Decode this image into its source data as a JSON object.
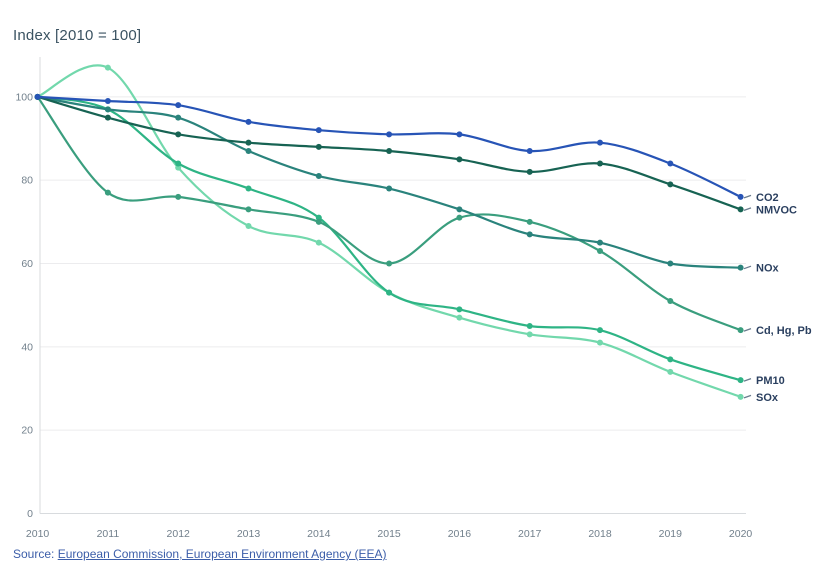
{
  "title": "Index [2010 = 100]",
  "source": {
    "prefix": "Source: ",
    "link_text": "European Commission, European Environment Agency (EEA)",
    "link_color": "#3c5ea9"
  },
  "axis": {
    "tick_color": "#72808c",
    "grid_color": "#ececee",
    "axis_line_color": "#d8dbde",
    "label_color": "#2a3f5f"
  },
  "chart_data": {
    "type": "line",
    "title": "Index [2010 = 100]",
    "x": [
      2010,
      2011,
      2012,
      2013,
      2014,
      2015,
      2016,
      2017,
      2018,
      2019,
      2020
    ],
    "yticks": [
      0,
      20,
      40,
      60,
      80,
      100
    ],
    "ylim": [
      0,
      110
    ],
    "grid": true,
    "legend_position": "right-end-labels",
    "marker": "dot",
    "smooth": true,
    "series": [
      {
        "id": "co2",
        "name": "CO2",
        "color": "#2754b6",
        "values": [
          100,
          99,
          98,
          94,
          92,
          91,
          91,
          87,
          89,
          84,
          76
        ]
      },
      {
        "id": "nmvoc",
        "name": "NMVOC",
        "color": "#176353",
        "values": [
          100,
          95,
          91,
          89,
          88,
          87,
          85,
          82,
          84,
          79,
          73
        ]
      },
      {
        "id": "nox",
        "name": "NOx",
        "color": "#2a837c",
        "values": [
          100,
          97,
          95,
          87,
          81,
          78,
          73,
          67,
          65,
          60,
          59
        ]
      },
      {
        "id": "cd-hg-pb",
        "name": "Cd, Hg, Pb",
        "color": "#3a9e7e",
        "values": [
          100,
          77,
          76,
          73,
          70,
          60,
          71,
          70,
          63,
          51,
          44
        ]
      },
      {
        "id": "pm10",
        "name": "PM10",
        "color": "#2eb485",
        "values": [
          100,
          97,
          84,
          78,
          71,
          53,
          49,
          45,
          44,
          37,
          32
        ]
      },
      {
        "id": "sox",
        "name": "SOx",
        "color": "#72d8ac",
        "values": [
          100,
          107,
          83,
          69,
          65,
          53,
          47,
          43,
          41,
          34,
          28
        ]
      }
    ]
  }
}
